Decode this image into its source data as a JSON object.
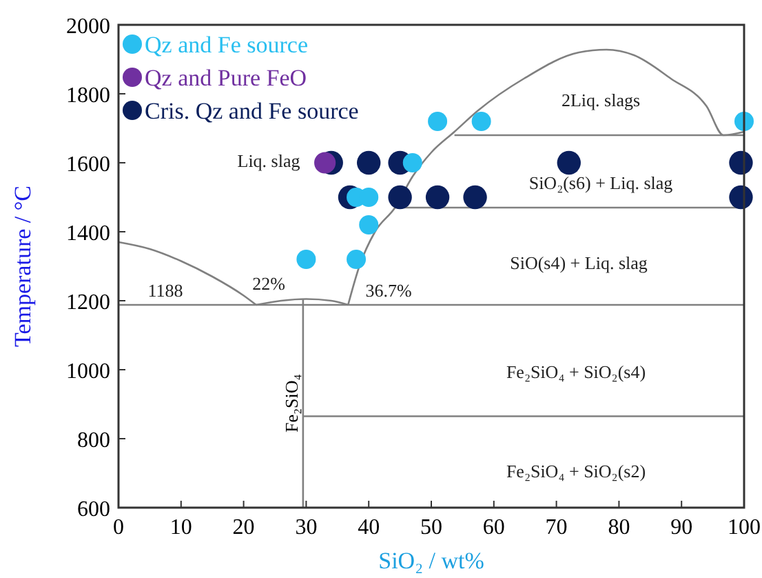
{
  "chart_data": {
    "type": "scatter",
    "xlabel": "SiO₂ / wt%",
    "ylabel": "Temperature / °C",
    "xlim": [
      0,
      100
    ],
    "ylim": [
      600,
      2000
    ],
    "xticks": [
      0,
      10,
      20,
      30,
      40,
      50,
      60,
      70,
      80,
      90,
      100
    ],
    "yticks": [
      600,
      800,
      1000,
      1200,
      1400,
      1600,
      1800,
      2000
    ],
    "grid": false,
    "legend": "top left",
    "series": [
      {
        "type": "line",
        "color": "#808080",
        "x": [
          0,
          5,
          10,
          15,
          20,
          22
        ],
        "values": [
          1370,
          1350,
          1315,
          1270,
          1215,
          1188
        ]
      },
      {
        "type": "line",
        "color": "#808080",
        "x": [
          0,
          100
        ],
        "values": [
          1188,
          1188
        ]
      },
      {
        "type": "line",
        "color": "#808080",
        "x": [
          22,
          26,
          30,
          34,
          36.7
        ],
        "values": [
          1188,
          1200,
          1205,
          1200,
          1188
        ]
      },
      {
        "type": "line",
        "name": "Fe₂SiO₄",
        "color": "#808080",
        "x": [
          29.5,
          29.5
        ],
        "values": [
          600,
          1205
        ]
      },
      {
        "type": "line",
        "color": "#808080",
        "x": [
          29.5,
          100
        ],
        "values": [
          865,
          865
        ]
      },
      {
        "type": "line",
        "color": "#808080",
        "x": [
          36.7,
          38.5,
          41,
          44.2,
          47,
          50,
          53.7,
          57.5,
          64.8,
          73.6,
          78,
          82.4,
          88.3,
          94,
          96.7,
          100
        ],
        "values": [
          1188,
          1300,
          1400,
          1470,
          1560,
          1630,
          1690,
          1752,
          1844,
          1920,
          1928,
          1912,
          1844,
          1764,
          1680,
          1690
        ]
      },
      {
        "type": "line",
        "color": "#808080",
        "x": [
          53.7,
          100
        ],
        "values": [
          1680,
          1680
        ]
      },
      {
        "type": "line",
        "color": "#808080",
        "x": [
          44.2,
          100
        ],
        "values": [
          1470,
          1470
        ]
      },
      {
        "marker": "circle",
        "name": "Qz and Fe source",
        "color": "#29bff0",
        "x": [
          30,
          38,
          40,
          38,
          40,
          47,
          51,
          58,
          100
        ],
        "values": [
          1320,
          1320,
          1420,
          1500,
          1500,
          1600,
          1720,
          1720,
          1720
        ]
      },
      {
        "marker": "circle",
        "name": "Qz and Pure FeO",
        "color": "#7030a0",
        "x": [
          33
        ],
        "values": [
          1600
        ]
      },
      {
        "marker": "circle",
        "name": "Cris. Qz and Fe source",
        "color": "#0a1f5c",
        "x": [
          34,
          40,
          45,
          37,
          45,
          51,
          57,
          72,
          99.5,
          99.5
        ],
        "values": [
          1600,
          1600,
          1600,
          1500,
          1500,
          1500,
          1500,
          1600,
          1600,
          1500
        ]
      }
    ],
    "annotations": [
      "2Liq. slags",
      "Liq. slag",
      "SiO₂(s6) + Liq. slag",
      "SiO(s4) + Liq. slag",
      "1188",
      "22%",
      "36.7%",
      "Fe₂SiO₄ + SiO₂(s4)",
      "Fe₂SiO₄ + SiO₂(s2)"
    ]
  }
}
